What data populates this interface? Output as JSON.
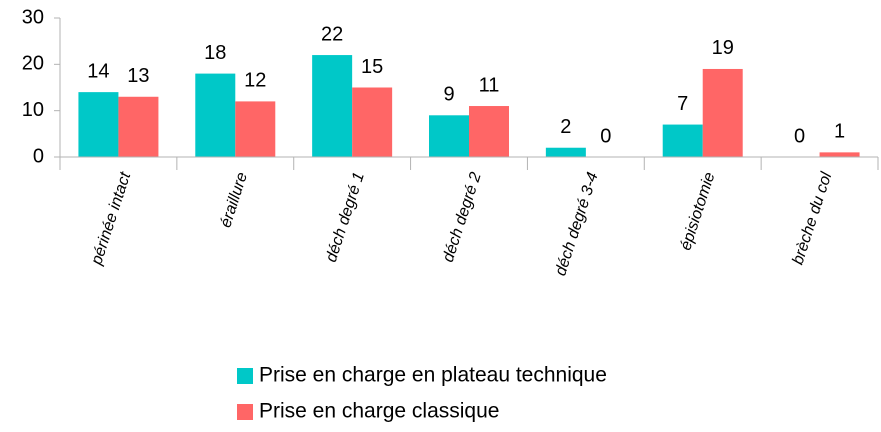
{
  "chart_data": {
    "type": "bar",
    "categories": [
      "périnée intact",
      "éraillure",
      "déch degré 1",
      "déch degré 2",
      "déch degré 3-4",
      "épisiotomie",
      "brèche du col"
    ],
    "series": [
      {
        "name": "Prise en charge en plateau technique",
        "color": "#00c8c8",
        "values": [
          14,
          18,
          22,
          9,
          2,
          7,
          0
        ]
      },
      {
        "name": "Prise en charge classique",
        "color": "#ff6666",
        "values": [
          13,
          12,
          15,
          11,
          0,
          19,
          1
        ]
      }
    ],
    "ylim": [
      0,
      30
    ],
    "yticks": [
      0,
      10,
      20,
      30
    ],
    "grid": false
  }
}
